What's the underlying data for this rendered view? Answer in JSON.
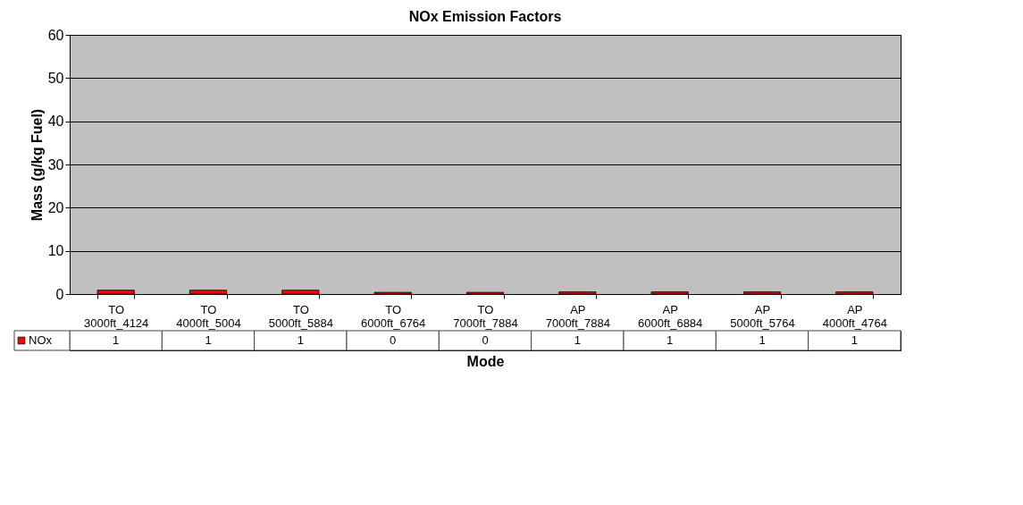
{
  "chart_data": {
    "type": "bar",
    "title": "NOx Emission Factors",
    "xlabel": "Mode",
    "ylabel": "Mass (g/kg Fuel)",
    "categories": [
      "TO 3000ft_4124",
      "TO 4000ft_5004",
      "TO 5000ft_5884",
      "TO 6000ft_6764",
      "TO 7000ft_7884",
      "AP 7000ft_7884",
      "AP 6000ft_6884",
      "AP 5000ft_5764",
      "AP 4000ft_4764"
    ],
    "series": [
      {
        "name": "NOx",
        "color": "#ff0000",
        "values": [
          0.9,
          0.9,
          0.9,
          0.4,
          0.4,
          0.5,
          0.5,
          0.5,
          0.5
        ],
        "value_labels": [
          "1",
          "1",
          "1",
          "0",
          "0",
          "1",
          "1",
          "1",
          "1"
        ]
      }
    ],
    "ylim": [
      0,
      60
    ],
    "yticks": [
      0,
      10,
      20,
      30,
      40,
      50,
      60
    ],
    "grid": "y",
    "legend": "bottom left"
  }
}
